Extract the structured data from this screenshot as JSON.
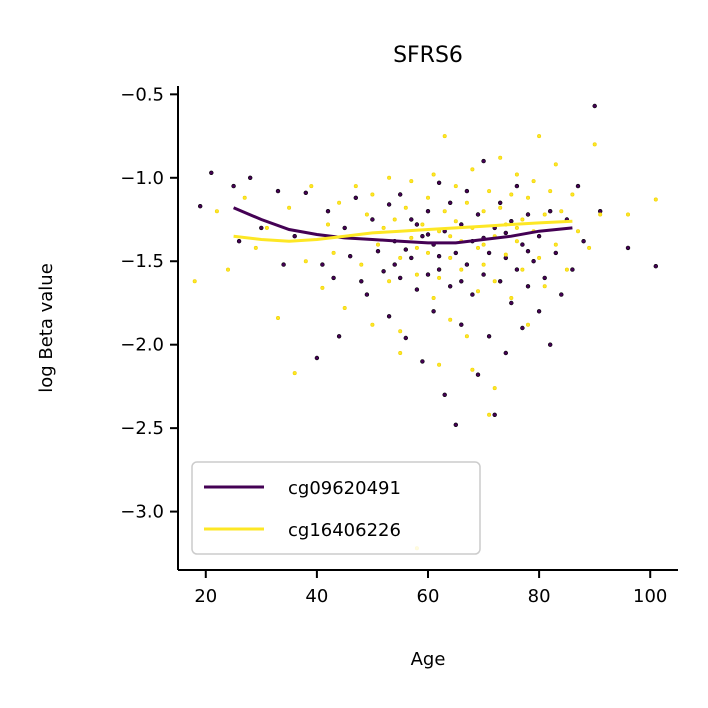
{
  "chart_data": {
    "type": "scatter",
    "title": "SFRS6",
    "xlabel": "Age",
    "ylabel": "log Beta value",
    "xlim": [
      15,
      105
    ],
    "ylim": [
      -3.35,
      -0.45
    ],
    "xticks": [
      20,
      40,
      60,
      80,
      100
    ],
    "xtick_labels": [
      "20",
      "40",
      "60",
      "80",
      "100"
    ],
    "yticks": [
      -3.0,
      -2.5,
      -2.0,
      -1.5,
      -1.0,
      -0.5
    ],
    "ytick_labels": [
      "−3.0",
      "−2.5",
      "−2.0",
      "−1.5",
      "−1.0",
      "−0.5"
    ],
    "grid": false,
    "legend_position": "lower-left",
    "series": [
      {
        "name": "cg09620491",
        "color": "#440154",
        "trend": {
          "x": [
            25,
            30,
            35,
            40,
            45,
            50,
            55,
            60,
            65,
            70,
            75,
            80,
            86
          ],
          "y": [
            -1.18,
            -1.25,
            -1.31,
            -1.34,
            -1.36,
            -1.37,
            -1.38,
            -1.39,
            -1.39,
            -1.37,
            -1.35,
            -1.32,
            -1.3
          ]
        },
        "points": [
          [
            19,
            -1.17
          ],
          [
            21,
            -0.97
          ],
          [
            25,
            -1.05
          ],
          [
            26,
            -1.38
          ],
          [
            28,
            -1.0
          ],
          [
            30,
            -1.3
          ],
          [
            33,
            -1.08
          ],
          [
            34,
            -1.52
          ],
          [
            36,
            -1.35
          ],
          [
            38,
            -1.09
          ],
          [
            40,
            -2.08
          ],
          [
            41,
            -1.52
          ],
          [
            42,
            -1.2
          ],
          [
            43,
            -1.6
          ],
          [
            44,
            -1.95
          ],
          [
            45,
            -1.3
          ],
          [
            46,
            -1.47
          ],
          [
            47,
            -1.12
          ],
          [
            48,
            -1.62
          ],
          [
            49,
            -1.7
          ],
          [
            50,
            -1.25
          ],
          [
            51,
            -1.44
          ],
          [
            52,
            -1.56
          ],
          [
            53,
            -1.16
          ],
          [
            53,
            -1.83
          ],
          [
            54,
            -1.38
          ],
          [
            55,
            -1.6
          ],
          [
            55,
            -1.1
          ],
          [
            56,
            -1.96
          ],
          [
            57,
            -1.48
          ],
          [
            57,
            -1.25
          ],
          [
            58,
            -1.67
          ],
          [
            59,
            -1.35
          ],
          [
            59,
            -2.1
          ],
          [
            60,
            -1.58
          ],
          [
            60,
            -1.2
          ],
          [
            61,
            -1.4
          ],
          [
            61,
            -1.8
          ],
          [
            62,
            -1.03
          ],
          [
            62,
            -1.55
          ],
          [
            63,
            -1.32
          ],
          [
            63,
            -2.3
          ],
          [
            64,
            -1.65
          ],
          [
            64,
            -1.15
          ],
          [
            65,
            -1.45
          ],
          [
            65,
            -2.48
          ],
          [
            66,
            -1.28
          ],
          [
            66,
            -1.88
          ],
          [
            67,
            -1.52
          ],
          [
            67,
            -1.08
          ],
          [
            68,
            -1.7
          ],
          [
            68,
            -1.38
          ],
          [
            69,
            -2.18
          ],
          [
            69,
            -1.22
          ],
          [
            70,
            -1.58
          ],
          [
            70,
            -0.9
          ],
          [
            71,
            -1.45
          ],
          [
            71,
            -1.95
          ],
          [
            72,
            -1.3
          ],
          [
            72,
            -2.42
          ],
          [
            73,
            -1.62
          ],
          [
            73,
            -1.15
          ],
          [
            74,
            -1.48
          ],
          [
            74,
            -2.05
          ],
          [
            75,
            -1.26
          ],
          [
            75,
            -1.75
          ],
          [
            76,
            -1.55
          ],
          [
            76,
            -1.05
          ],
          [
            77,
            -1.4
          ],
          [
            77,
            -1.9
          ],
          [
            78,
            -1.65
          ],
          [
            78,
            -1.22
          ],
          [
            79,
            -1.5
          ],
          [
            80,
            -1.35
          ],
          [
            80,
            -1.8
          ],
          [
            81,
            -1.6
          ],
          [
            82,
            -1.2
          ],
          [
            82,
            -2.0
          ],
          [
            83,
            -1.45
          ],
          [
            84,
            -1.7
          ],
          [
            85,
            -1.25
          ],
          [
            86,
            -1.55
          ],
          [
            87,
            -1.05
          ],
          [
            88,
            -1.38
          ],
          [
            90,
            -0.57
          ],
          [
            91,
            -1.2
          ],
          [
            96,
            -1.42
          ],
          [
            101,
            -1.53
          ],
          [
            56,
            -1.43
          ],
          [
            58,
            -1.28
          ],
          [
            62,
            -1.47
          ],
          [
            66,
            -1.62
          ],
          [
            70,
            -1.36
          ],
          [
            74,
            -1.33
          ],
          [
            78,
            -1.44
          ],
          [
            54,
            -1.52
          ],
          [
            60,
            -1.34
          ]
        ]
      },
      {
        "name": "cg16406226",
        "color": "#fde725",
        "trend": {
          "x": [
            25,
            30,
            35,
            40,
            45,
            50,
            55,
            60,
            65,
            70,
            75,
            80,
            86
          ],
          "y": [
            -1.35,
            -1.37,
            -1.38,
            -1.37,
            -1.35,
            -1.33,
            -1.32,
            -1.31,
            -1.3,
            -1.29,
            -1.28,
            -1.27,
            -1.26
          ]
        },
        "points": [
          [
            18,
            -1.62
          ],
          [
            22,
            -1.2
          ],
          [
            24,
            -1.55
          ],
          [
            27,
            -1.12
          ],
          [
            29,
            -1.42
          ],
          [
            31,
            -1.3
          ],
          [
            33,
            -1.84
          ],
          [
            35,
            -1.18
          ],
          [
            36,
            -2.17
          ],
          [
            38,
            -1.5
          ],
          [
            39,
            -1.05
          ],
          [
            41,
            -1.66
          ],
          [
            42,
            -1.28
          ],
          [
            43,
            -1.45
          ],
          [
            44,
            -1.15
          ],
          [
            45,
            -1.78
          ],
          [
            46,
            -1.35
          ],
          [
            47,
            -1.05
          ],
          [
            48,
            -1.52
          ],
          [
            49,
            -1.22
          ],
          [
            50,
            -1.88
          ],
          [
            50,
            -1.1
          ],
          [
            51,
            -1.4
          ],
          [
            52,
            -1.3
          ],
          [
            53,
            -1.0
          ],
          [
            53,
            -1.62
          ],
          [
            54,
            -1.25
          ],
          [
            55,
            -1.48
          ],
          [
            55,
            -1.92
          ],
          [
            56,
            -1.18
          ],
          [
            57,
            -1.36
          ],
          [
            57,
            -1.02
          ],
          [
            58,
            -1.58
          ],
          [
            58,
            -3.22
          ],
          [
            59,
            -1.28
          ],
          [
            60,
            -1.45
          ],
          [
            60,
            -1.12
          ],
          [
            61,
            -1.72
          ],
          [
            61,
            -0.98
          ],
          [
            62,
            -1.32
          ],
          [
            62,
            -1.6
          ],
          [
            63,
            -0.75
          ],
          [
            63,
            -1.2
          ],
          [
            64,
            -1.48
          ],
          [
            64,
            -1.85
          ],
          [
            65,
            -1.26
          ],
          [
            65,
            -1.05
          ],
          [
            66,
            -1.55
          ],
          [
            66,
            -1.38
          ],
          [
            67,
            -1.15
          ],
          [
            67,
            -1.95
          ],
          [
            68,
            -1.3
          ],
          [
            68,
            -0.95
          ],
          [
            69,
            -1.42
          ],
          [
            69,
            -1.68
          ],
          [
            70,
            -1.2
          ],
          [
            70,
            -1.52
          ],
          [
            71,
            -1.08
          ],
          [
            71,
            -2.42
          ],
          [
            72,
            -1.35
          ],
          [
            72,
            -1.62
          ],
          [
            73,
            -1.18
          ],
          [
            73,
            -0.88
          ],
          [
            74,
            -1.46
          ],
          [
            74,
            -1.28
          ],
          [
            75,
            -1.1
          ],
          [
            75,
            -1.72
          ],
          [
            76,
            -1.38
          ],
          [
            76,
            -0.98
          ],
          [
            77,
            -1.25
          ],
          [
            77,
            -1.55
          ],
          [
            78,
            -1.12
          ],
          [
            78,
            -1.88
          ],
          [
            79,
            -1.32
          ],
          [
            79,
            -1.02
          ],
          [
            80,
            -1.48
          ],
          [
            80,
            -0.75
          ],
          [
            81,
            -1.22
          ],
          [
            81,
            -1.65
          ],
          [
            82,
            -1.08
          ],
          [
            83,
            -1.4
          ],
          [
            83,
            -0.92
          ],
          [
            84,
            -1.2
          ],
          [
            85,
            -1.55
          ],
          [
            86,
            -1.1
          ],
          [
            87,
            -1.32
          ],
          [
            89,
            -1.42
          ],
          [
            90,
            -0.8
          ],
          [
            91,
            -1.22
          ],
          [
            96,
            -1.22
          ],
          [
            101,
            -1.13
          ],
          [
            55,
            -2.05
          ],
          [
            62,
            -2.12
          ],
          [
            68,
            -2.15
          ],
          [
            72,
            -2.26
          ],
          [
            58,
            -1.42
          ],
          [
            64,
            -1.35
          ],
          [
            70,
            -1.4
          ],
          [
            76,
            -1.3
          ]
        ]
      }
    ]
  }
}
